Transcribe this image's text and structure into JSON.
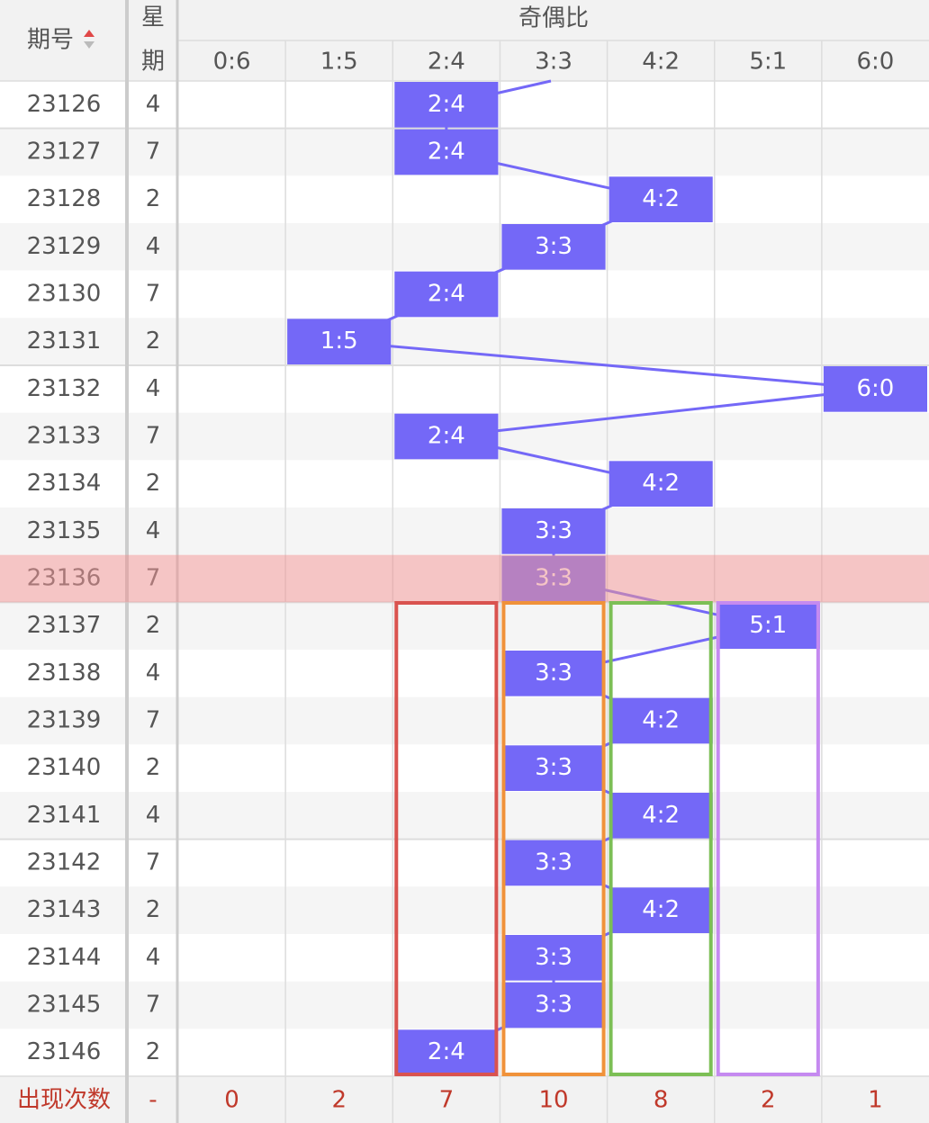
{
  "header": {
    "issue": "期号",
    "weekday": [
      "星",
      "期"
    ],
    "group": "奇偶比",
    "columns": [
      "0:6",
      "1:5",
      "2:4",
      "3:3",
      "4:2",
      "5:1",
      "6:0"
    ]
  },
  "rows": [
    {
      "issue": "23126",
      "weekday": "4",
      "ratio": "2:4"
    },
    {
      "issue": "23127",
      "weekday": "7",
      "ratio": "2:4"
    },
    {
      "issue": "23128",
      "weekday": "2",
      "ratio": "4:2"
    },
    {
      "issue": "23129",
      "weekday": "4",
      "ratio": "3:3"
    },
    {
      "issue": "23130",
      "weekday": "7",
      "ratio": "2:4"
    },
    {
      "issue": "23131",
      "weekday": "2",
      "ratio": "1:5"
    },
    {
      "issue": "23132",
      "weekday": "4",
      "ratio": "6:0"
    },
    {
      "issue": "23133",
      "weekday": "7",
      "ratio": "2:4"
    },
    {
      "issue": "23134",
      "weekday": "2",
      "ratio": "4:2"
    },
    {
      "issue": "23135",
      "weekday": "4",
      "ratio": "3:3"
    },
    {
      "issue": "23136",
      "weekday": "7",
      "ratio": "3:3"
    },
    {
      "issue": "23137",
      "weekday": "2",
      "ratio": "5:1"
    },
    {
      "issue": "23138",
      "weekday": "4",
      "ratio": "3:3"
    },
    {
      "issue": "23139",
      "weekday": "7",
      "ratio": "4:2"
    },
    {
      "issue": "23140",
      "weekday": "2",
      "ratio": "3:3"
    },
    {
      "issue": "23141",
      "weekday": "4",
      "ratio": "4:2"
    },
    {
      "issue": "23142",
      "weekday": "7",
      "ratio": "3:3"
    },
    {
      "issue": "23143",
      "weekday": "2",
      "ratio": "4:2"
    },
    {
      "issue": "23144",
      "weekday": "4",
      "ratio": "3:3"
    },
    {
      "issue": "23145",
      "weekday": "7",
      "ratio": "3:3"
    },
    {
      "issue": "23146",
      "weekday": "2",
      "ratio": "2:4"
    }
  ],
  "footer": {
    "label": "出现次数",
    "weekday": "-",
    "counts": [
      0,
      2,
      7,
      10,
      8,
      2,
      1
    ]
  }
}
